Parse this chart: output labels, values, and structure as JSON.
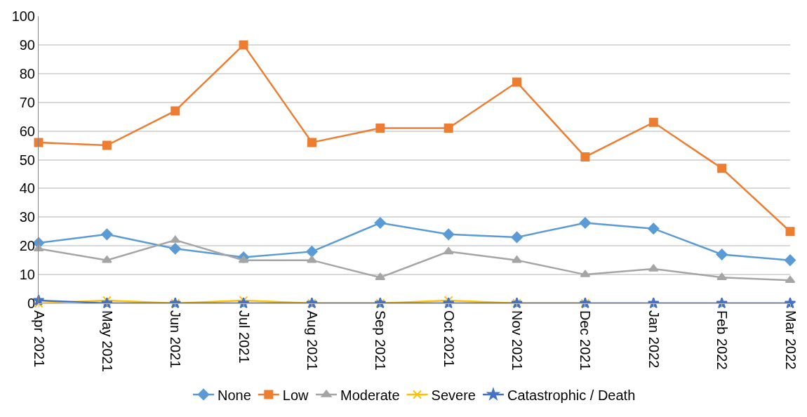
{
  "chart_data": {
    "type": "line",
    "categories": [
      "Apr 2021",
      "May 2021",
      "Jun 2021",
      "Jul 2021",
      "Aug 2021",
      "Sep 2021",
      "Oct 2021",
      "Nov 2021",
      "Dec 2021",
      "Jan 2022",
      "Feb 2022",
      "Mar 2022"
    ],
    "series": [
      {
        "name": "None",
        "color": "#5b9bd5",
        "marker": "diamond",
        "values": [
          21,
          24,
          19,
          16,
          18,
          28,
          24,
          23,
          28,
          26,
          17,
          15
        ]
      },
      {
        "name": "Low",
        "color": "#ed7d31",
        "marker": "square",
        "values": [
          56,
          55,
          67,
          90,
          56,
          61,
          61,
          77,
          51,
          63,
          47,
          25
        ]
      },
      {
        "name": "Moderate",
        "color": "#a5a5a5",
        "marker": "triangle",
        "values": [
          19,
          15,
          22,
          15,
          15,
          9,
          18,
          15,
          10,
          12,
          9,
          8
        ]
      },
      {
        "name": "Severe",
        "color": "#ffc000",
        "marker": "cross",
        "values": [
          0,
          1,
          0,
          1,
          0,
          0,
          1,
          0,
          0,
          null,
          null,
          null
        ]
      },
      {
        "name": "Catastrophic / Death",
        "color": "#4472c4",
        "marker": "star",
        "values": [
          1,
          0,
          0,
          0,
          0,
          0,
          0,
          0,
          0,
          0,
          0,
          0
        ]
      }
    ],
    "ylim": [
      0,
      100
    ],
    "yticks": [
      0,
      10,
      20,
      30,
      40,
      50,
      60,
      70,
      80,
      90,
      100
    ],
    "grid": "y",
    "legend": "bottom",
    "line_style": "solid"
  }
}
